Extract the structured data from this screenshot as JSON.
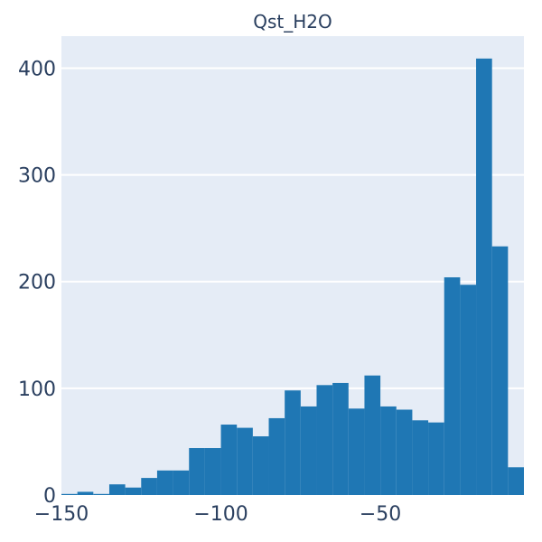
{
  "chart_data": {
    "type": "bar",
    "title": "Qst_H2O",
    "xlabel": "",
    "ylabel": "",
    "xlim": [
      -150,
      -5
    ],
    "ylim": [
      0,
      430
    ],
    "bin_width": 5,
    "bins": [
      {
        "x0": -150,
        "x1": -145,
        "value": 1
      },
      {
        "x0": -145,
        "x1": -140,
        "value": 3
      },
      {
        "x0": -140,
        "x1": -135,
        "value": 1
      },
      {
        "x0": -135,
        "x1": -130,
        "value": 10
      },
      {
        "x0": -130,
        "x1": -125,
        "value": 7
      },
      {
        "x0": -125,
        "x1": -120,
        "value": 16
      },
      {
        "x0": -120,
        "x1": -115,
        "value": 23
      },
      {
        "x0": -115,
        "x1": -110,
        "value": 23
      },
      {
        "x0": -110,
        "x1": -105,
        "value": 44
      },
      {
        "x0": -105,
        "x1": -100,
        "value": 44
      },
      {
        "x0": -100,
        "x1": -95,
        "value": 66
      },
      {
        "x0": -95,
        "x1": -90,
        "value": 63
      },
      {
        "x0": -90,
        "x1": -85,
        "value": 55
      },
      {
        "x0": -85,
        "x1": -80,
        "value": 72
      },
      {
        "x0": -80,
        "x1": -75,
        "value": 98
      },
      {
        "x0": -75,
        "x1": -70,
        "value": 83
      },
      {
        "x0": -70,
        "x1": -65,
        "value": 103
      },
      {
        "x0": -65,
        "x1": -60,
        "value": 105
      },
      {
        "x0": -60,
        "x1": -55,
        "value": 81
      },
      {
        "x0": -55,
        "x1": -50,
        "value": 112
      },
      {
        "x0": -50,
        "x1": -45,
        "value": 83
      },
      {
        "x0": -45,
        "x1": -40,
        "value": 80
      },
      {
        "x0": -40,
        "x1": -35,
        "value": 70
      },
      {
        "x0": -35,
        "x1": -30,
        "value": 68
      },
      {
        "x0": -30,
        "x1": -25,
        "value": 204
      },
      {
        "x0": -25,
        "x1": -20,
        "value": 197
      },
      {
        "x0": -20,
        "x1": -15,
        "value": 409
      },
      {
        "x0": -15,
        "x1": -10,
        "value": 233
      },
      {
        "x0": -10,
        "x1": -5,
        "value": 26
      }
    ],
    "x_ticks": [
      -150,
      -100,
      -50
    ],
    "x_tick_labels": [
      "−150",
      "−100",
      "−50"
    ],
    "y_ticks": [
      0,
      100,
      200,
      300,
      400
    ],
    "y_tick_labels": [
      "0",
      "100",
      "200",
      "300",
      "400"
    ],
    "grid": true,
    "legend": "none",
    "colors": {
      "bar": "#1f77b4",
      "plot_bg": "#e5ecf6",
      "grid": "#ffffff",
      "text": "#2a3f5f"
    }
  }
}
